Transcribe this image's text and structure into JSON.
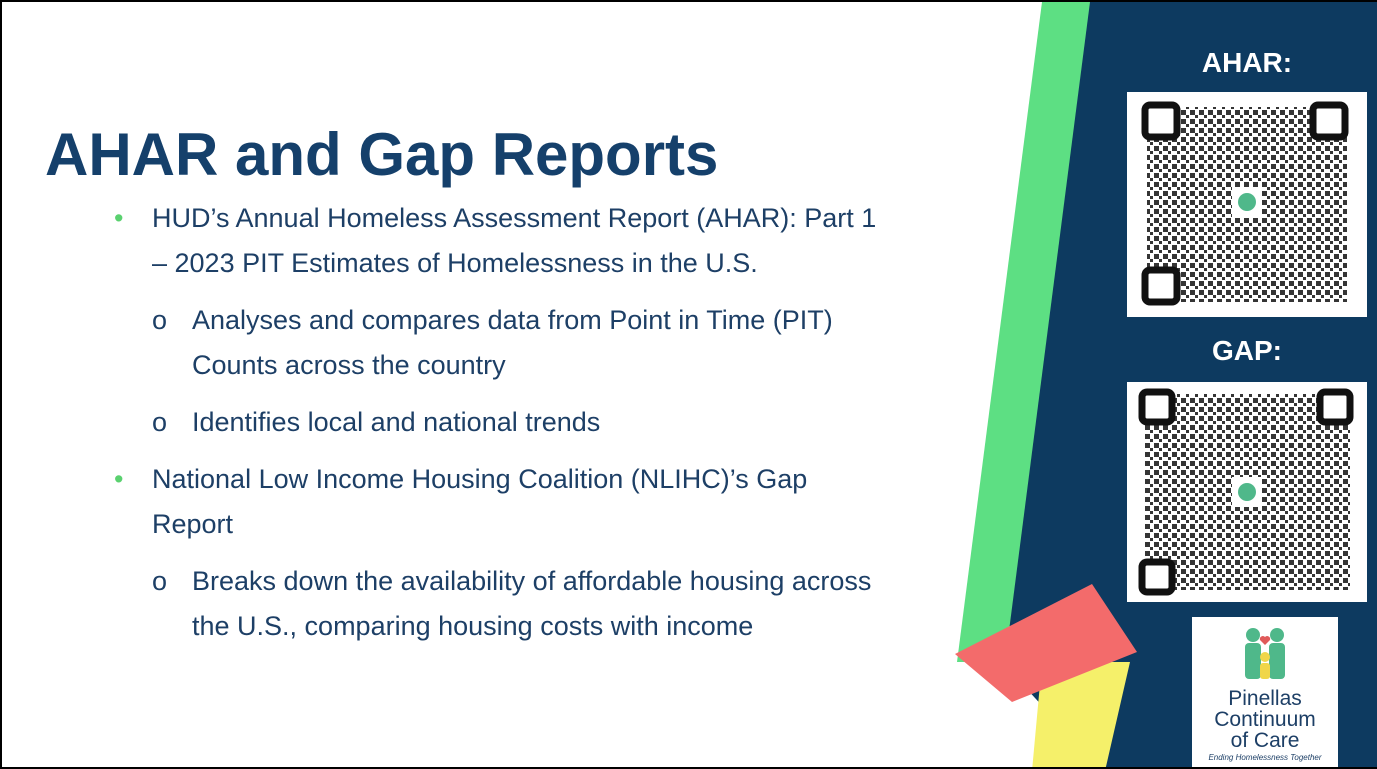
{
  "slide": {
    "title": "AHAR and Gap Reports",
    "bullets": [
      {
        "text": "HUD’s Annual Homeless Assessment Report (AHAR): Part 1 – 2023 PIT Estimates of Homelessness in the U.S.",
        "sub": [
          "Analyses and compares data from Point in Time (PIT) Counts across the country",
          "Identifies local and national trends"
        ]
      },
      {
        "text": "National Low Income Housing Coalition (NLIHC)’s Gap Report",
        "sub": [
          "Breaks down the availability of affordable housing across the U.S., comparing housing costs with income"
        ]
      }
    ],
    "panel": {
      "qr_labels": [
        "AHAR:",
        "GAP:"
      ],
      "logo_lines": [
        "Pinellas",
        "Continuum",
        "of Care"
      ],
      "logo_tagline": "Ending Homelessness Together"
    }
  }
}
